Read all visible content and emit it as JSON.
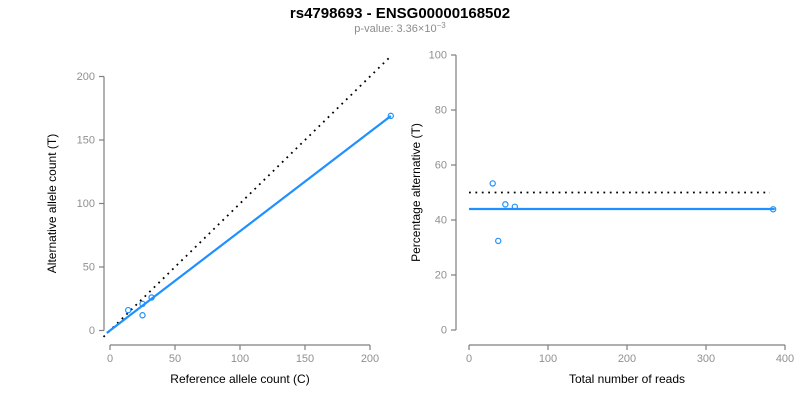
{
  "header": {
    "title": "rs4798693 - ENSG00000168502",
    "subtitle_base": "p-value: 3.36×10",
    "subtitle_exp": "−3"
  },
  "colors": {
    "accent_blue": "#1E90FF",
    "line_black": "#000000",
    "axis_gray": "#7f7f7f",
    "tick_label_gray": "#909090"
  },
  "chart_data": [
    {
      "type": "scatter",
      "panel": "left",
      "xlabel": "Reference allele count (C)",
      "ylabel": "Alternative allele count (T)",
      "xlim": [
        0,
        200
      ],
      "ylim": [
        0,
        200
      ],
      "xticks": [
        0,
        50,
        100,
        150,
        200
      ],
      "yticks": [
        0,
        50,
        100,
        150,
        200
      ],
      "grid": false,
      "points": [
        [
          14,
          16
        ],
        [
          25,
          21
        ],
        [
          32,
          26
        ],
        [
          25,
          12
        ],
        [
          216,
          169
        ]
      ],
      "lines": [
        {
          "name": "identity-line",
          "style": "dotted",
          "color": "#000000",
          "slope": 1,
          "intercept": 0,
          "x_range": [
            -5,
            215.5
          ]
        },
        {
          "name": "fit-line",
          "style": "solid",
          "color": "#1E90FF",
          "slope": 0.782,
          "intercept": 0,
          "x_range": [
            -2.5,
            216
          ]
        }
      ]
    },
    {
      "type": "scatter",
      "panel": "right",
      "xlabel": "Total number of reads",
      "ylabel": "Percentage alternative (T)",
      "xlim": [
        0,
        400
      ],
      "ylim": [
        0,
        100
      ],
      "xticks": [
        0,
        100,
        200,
        300,
        400
      ],
      "yticks": [
        0,
        20,
        40,
        60,
        80,
        100
      ],
      "grid": false,
      "points": [
        [
          30,
          53.3
        ],
        [
          46,
          45.7
        ],
        [
          58,
          44.8
        ],
        [
          37,
          32.4
        ],
        [
          385,
          43.9
        ]
      ],
      "lines": [
        {
          "name": "fifty-percent-line",
          "style": "dotted",
          "color": "#000000",
          "y": 50,
          "x_range": [
            0,
            381
          ]
        },
        {
          "name": "mean-percentage-line",
          "style": "solid",
          "color": "#1E90FF",
          "y": 44,
          "x_range": [
            0,
            387
          ]
        }
      ]
    }
  ]
}
